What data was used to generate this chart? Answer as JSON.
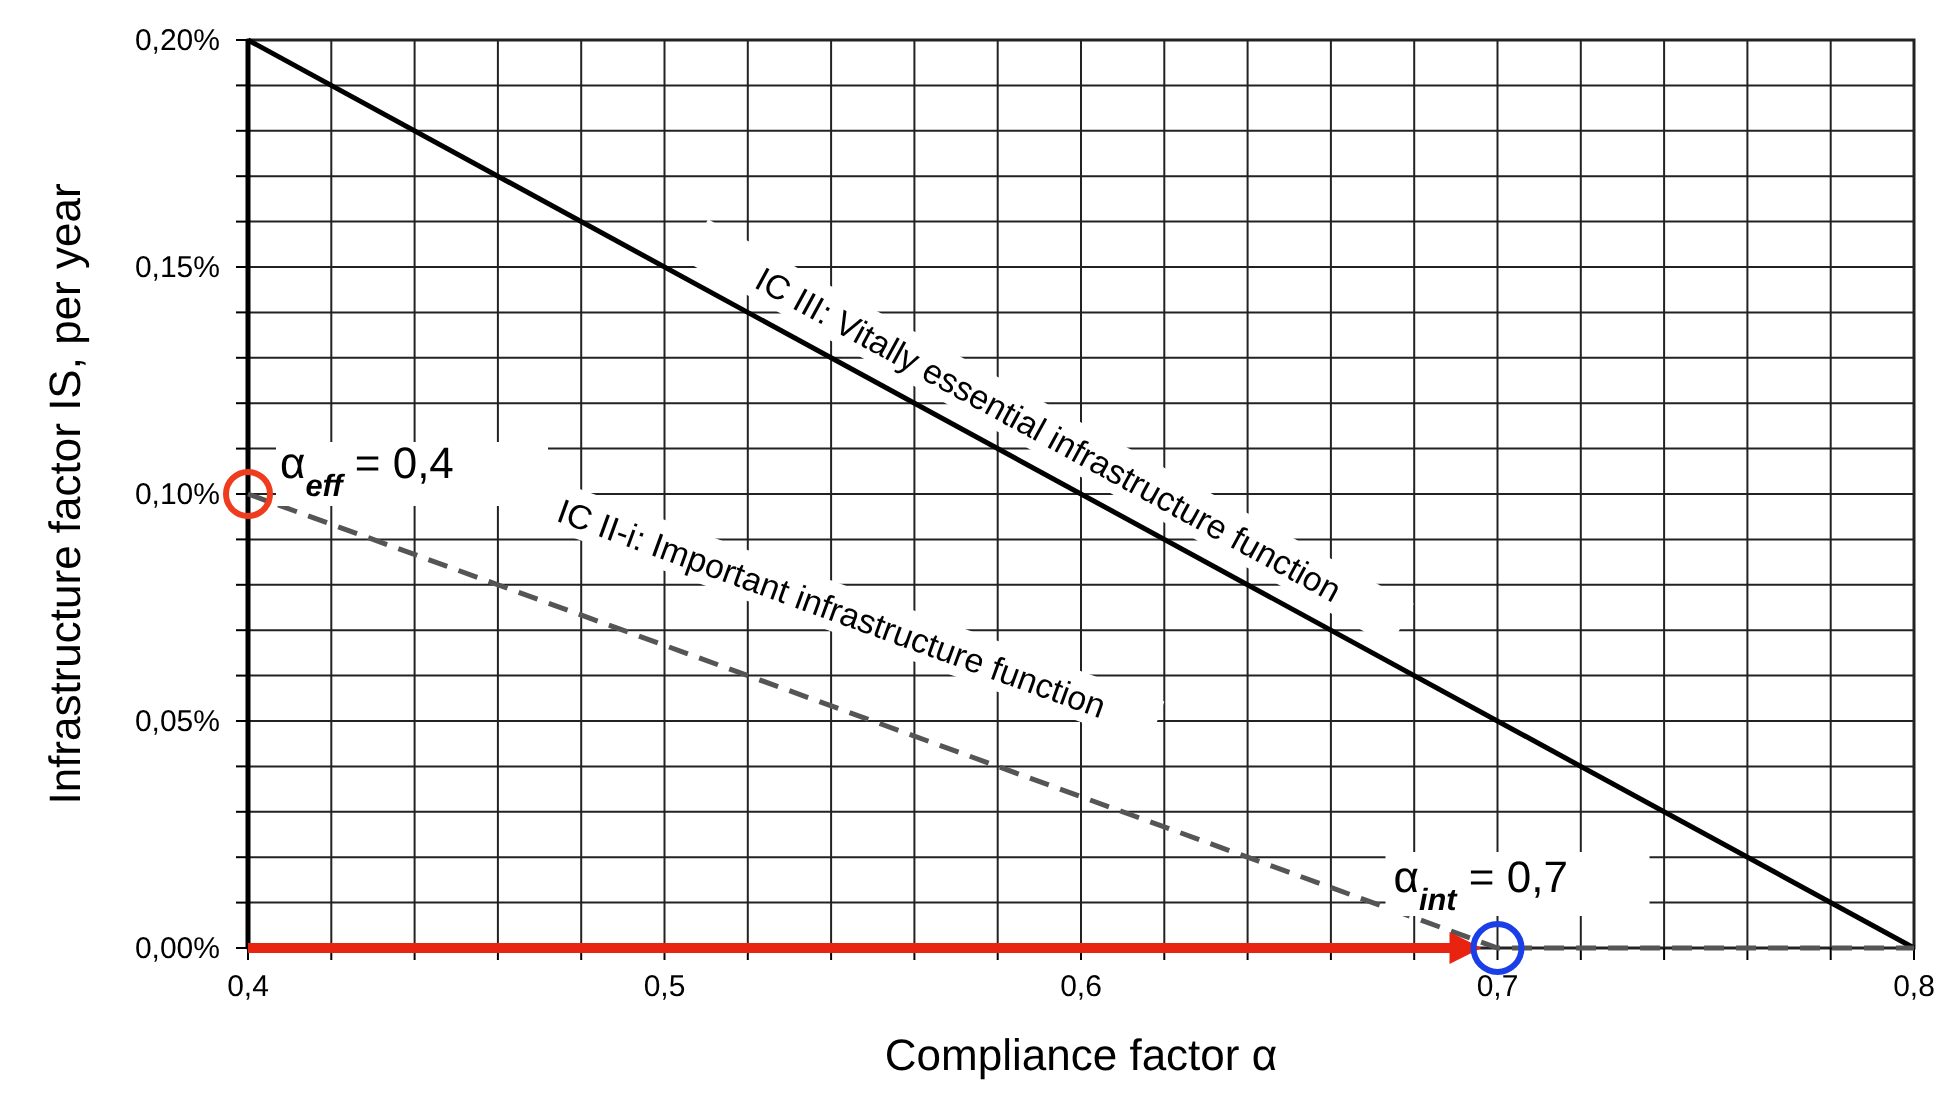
{
  "chart_data": {
    "type": "line",
    "xlabel": "Compliance factor α",
    "ylabel": "Infrastructure factor IS, per year",
    "xlim": [
      0.4,
      0.8
    ],
    "xticks": [
      {
        "value": 0.4,
        "label": "0,4"
      },
      {
        "value": 0.42,
        "label": null
      },
      {
        "value": 0.44,
        "label": null
      },
      {
        "value": 0.46,
        "label": null
      },
      {
        "value": 0.48,
        "label": null
      },
      {
        "value": 0.5,
        "label": "0,5"
      },
      {
        "value": 0.52,
        "label": null
      },
      {
        "value": 0.54,
        "label": null
      },
      {
        "value": 0.56,
        "label": null
      },
      {
        "value": 0.58,
        "label": null
      },
      {
        "value": 0.6,
        "label": "0,6"
      },
      {
        "value": 0.62,
        "label": null
      },
      {
        "value": 0.64,
        "label": null
      },
      {
        "value": 0.66,
        "label": null
      },
      {
        "value": 0.68,
        "label": null
      },
      {
        "value": 0.7,
        "label": "0,7"
      },
      {
        "value": 0.72,
        "label": null
      },
      {
        "value": 0.74,
        "label": null
      },
      {
        "value": 0.76,
        "label": null
      },
      {
        "value": 0.78,
        "label": null
      },
      {
        "value": 0.8,
        "label": "0,8"
      }
    ],
    "ylim": [
      0,
      0.2
    ],
    "yticks": [
      {
        "value": 0,
        "label": "0,00%"
      },
      {
        "value": 0.01,
        "label": null
      },
      {
        "value": 0.02,
        "label": null
      },
      {
        "value": 0.03,
        "label": null
      },
      {
        "value": 0.04,
        "label": null
      },
      {
        "value": 0.05,
        "label": "0,05%"
      },
      {
        "value": 0.06,
        "label": null
      },
      {
        "value": 0.07,
        "label": null
      },
      {
        "value": 0.08,
        "label": null
      },
      {
        "value": 0.09,
        "label": null
      },
      {
        "value": 0.1,
        "label": "0,10%"
      },
      {
        "value": 0.11,
        "label": null
      },
      {
        "value": 0.12,
        "label": null
      },
      {
        "value": 0.13,
        "label": null
      },
      {
        "value": 0.14,
        "label": null
      },
      {
        "value": 0.15,
        "label": "0,15%"
      },
      {
        "value": 0.16,
        "label": null
      },
      {
        "value": 0.17,
        "label": null
      },
      {
        "value": 0.18,
        "label": null
      },
      {
        "value": 0.19,
        "label": null
      },
      {
        "value": 0.2,
        "label": "0,20%"
      }
    ],
    "grid": true,
    "legend": false,
    "series": [
      {
        "name": "IC III: Vitally essential infrastructure function",
        "color": "#000000",
        "line_style": "solid",
        "x": [
          0.4,
          0.8
        ],
        "values": [
          0.2,
          0
        ]
      },
      {
        "name": "IC II-i: Important infrastructure function",
        "color": "#555555",
        "line_style": "dashed",
        "x": [
          0.4,
          0.7,
          0.8
        ],
        "values": [
          0.1,
          0,
          0
        ]
      }
    ],
    "annotations": [
      {
        "text": "α$_{eff}$ = 0,4",
        "x": 0.4,
        "y": 0.1
      },
      {
        "text": "α$_{int}$ = 0,7",
        "x": 0.7,
        "y": 0
      }
    ]
  }
}
